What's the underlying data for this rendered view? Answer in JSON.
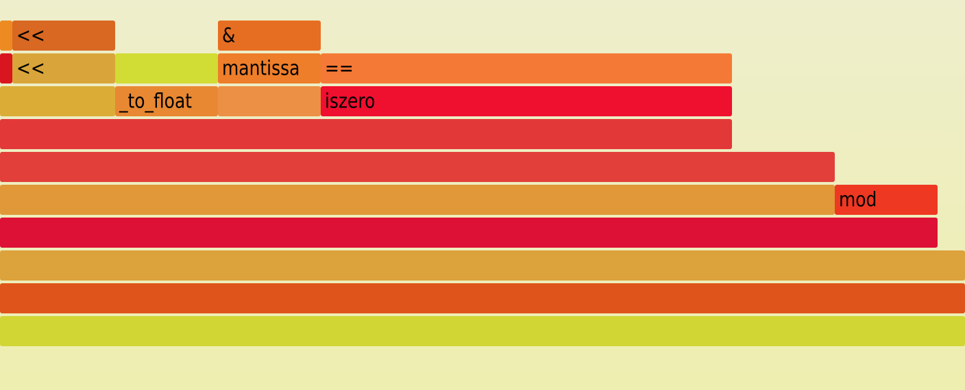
{
  "background": {
    "top_color": "#eeeecc",
    "bottom_color": "#eeeeb0"
  },
  "frames": [
    {
      "label": "",
      "color": "#ed8a22"
    },
    {
      "label": "<<",
      "color": "#d86822"
    },
    {
      "label": "&",
      "color": "#e66e22"
    },
    {
      "label": "",
      "color": "#d91520"
    },
    {
      "label": "<<",
      "color": "#d9a53a"
    },
    {
      "label": "",
      "color": "#d1dc34"
    },
    {
      "label": "mantissa",
      "color": "#ee7e2a"
    },
    {
      "label": "==",
      "color": "#f57936"
    },
    {
      "label": "",
      "color": "#dbad36"
    },
    {
      "label": "_to_float",
      "color": "#e88833"
    },
    {
      "label": "",
      "color": "#ec9045"
    },
    {
      "label": "iszero",
      "color": "#ef0f2f"
    },
    {
      "label": "",
      "color": "#e33838"
    },
    {
      "label": "",
      "color": "#e23f3a"
    },
    {
      "label": "",
      "color": "#e09838"
    },
    {
      "label": "mod",
      "color": "#ee3822"
    },
    {
      "label": "",
      "color": "#dd1136"
    },
    {
      "label": "",
      "color": "#dca23c"
    },
    {
      "label": "",
      "color": "#df541a"
    },
    {
      "label": "",
      "color": "#d1d634"
    }
  ]
}
